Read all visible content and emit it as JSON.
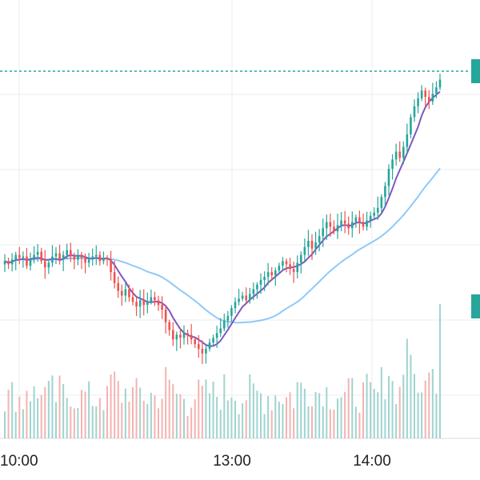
{
  "chart_data": {
    "type": "candlestick",
    "title": "",
    "xlabel": "",
    "ylabel": "",
    "x_tick_labels": [
      "10:00",
      "13:00",
      "14:00"
    ],
    "grid": true,
    "legend": "none",
    "current_price_line": true,
    "colors": {
      "up": "#26a69a",
      "down": "#ef5350",
      "volume_up": "#9fd4cf",
      "volume_down": "#f4b3b1",
      "ma_fast": "#7e57c2",
      "ma_slow": "#90caf9",
      "price_line": "#26a69a",
      "grid": "#eeeeee",
      "axis": "#dddddd"
    },
    "close": [
      100.5,
      100.3,
      100.6,
      100.9,
      100.7,
      100.8,
      100.2,
      100.6,
      100.9,
      101.1,
      100.5,
      100.1,
      100.4,
      100.8,
      101.0,
      100.6,
      100.9,
      101.2,
      100.8,
      100.6,
      100.9,
      100.7,
      100.4,
      100.6,
      100.8,
      100.9,
      100.5,
      100.7,
      100.6,
      99.8,
      99.1,
      98.6,
      98.3,
      98.7,
      98.2,
      97.9,
      97.6,
      98.0,
      97.7,
      97.9,
      98.2,
      98.0,
      97.7,
      97.4,
      96.6,
      96.1,
      95.5,
      95.8,
      95.6,
      95.9,
      95.8,
      95.5,
      95.2,
      94.9,
      94.6,
      94.9,
      95.3,
      95.6,
      95.9,
      96.2,
      96.7,
      97.0,
      97.5,
      97.9,
      98.1,
      98.3,
      98.0,
      98.4,
      98.7,
      99.0,
      99.3,
      99.5,
      99.8,
      99.6,
      99.9,
      100.2,
      100.5,
      100.3,
      100.0,
      99.8,
      100.4,
      100.9,
      101.4,
      101.8,
      101.3,
      101.7,
      102.1,
      102.6,
      103.0,
      102.7,
      102.4,
      102.8,
      103.1,
      102.9,
      102.6,
      103.0,
      103.3,
      103.0,
      102.7,
      103.1,
      103.4,
      103.6,
      103.9,
      104.6,
      105.3,
      106.4,
      107.0,
      107.5,
      107.1,
      107.8,
      108.6,
      109.7,
      110.4,
      110.9,
      111.4,
      111.0,
      110.7,
      111.2,
      111.6,
      112.1
    ]
  }
}
